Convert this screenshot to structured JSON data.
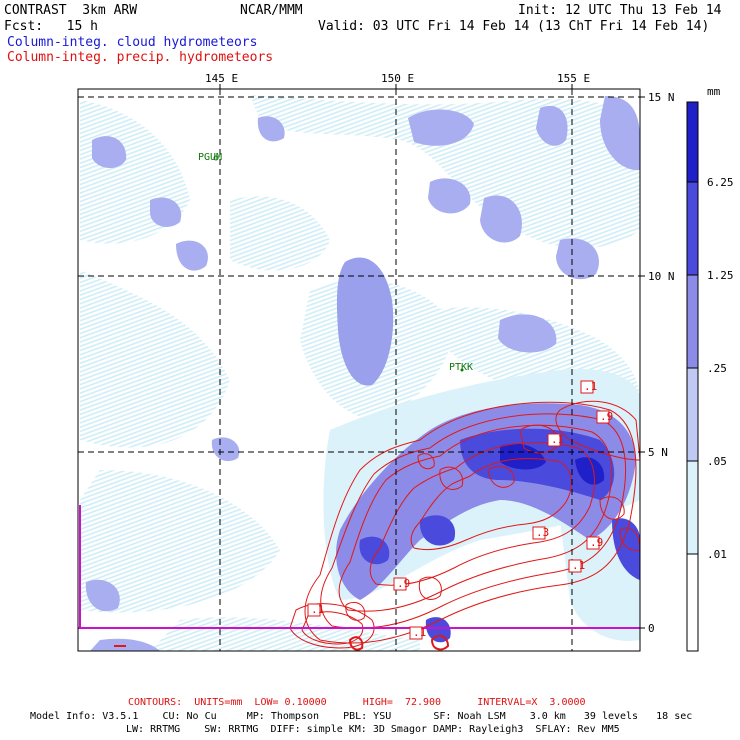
{
  "header": {
    "model_title": "CONTRAST  3km ARW",
    "org": "NCAR/MMM",
    "init": "Init: 12 UTC Thu 13 Feb 14",
    "fcst": "Fcst:   15 h",
    "valid": "Valid: 03 UTC Fri 14 Feb 14 (13 ChT Fri 14 Feb 14)",
    "field1": "Column-integ. cloud hydrometeors",
    "field2": "Column-integ. precip. hydrometeors"
  },
  "map": {
    "lon_labels": [
      "145 E",
      "150 E",
      "155 E"
    ],
    "lat_labels": [
      "15 N",
      "10 N",
      "5 N",
      "0"
    ],
    "stations": [
      "PGUM",
      "PTKK"
    ],
    "contour_labels": [
      ".1",
      ".9",
      ".3",
      ".9",
      ".1",
      ".9",
      ".1",
      ".1",
      ".1"
    ]
  },
  "colorbar": {
    "unit": "mm",
    "levels": [
      "6.25",
      "1.25",
      ".25",
      ".05",
      ".01"
    ],
    "colors": [
      "#2020c8",
      "#4a4adc",
      "#8c8ce8",
      "#c0c8f4",
      "#dcf2fa",
      "#ffffff"
    ]
  },
  "footer": {
    "contours_line": "CONTOURS:  UNITS=mm  LOW= 0.10000      HIGH=  72.900      INTERVAL=X  3.0000",
    "model_line1": "Model Info: V3.5.1    CU: No Cu     MP: Thompson    PBL: YSU       SF: Noah LSM    3.0 km   39 levels   18 sec",
    "model_line2": "LW: RRTMG    SW: RRTMG  DIFF: simple KM: 3D Smagor DAMP: Rayleigh3  SFLAY: Rev MM5"
  }
}
